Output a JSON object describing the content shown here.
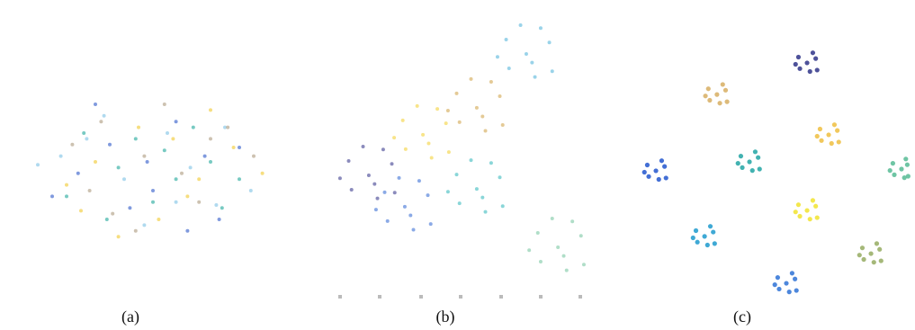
{
  "chart_data": [
    {
      "type": "scatter",
      "title": "(a)",
      "xlim": [
        0,
        100
      ],
      "ylim": [
        0,
        100
      ],
      "series": [
        {
          "color": "#f2d04a",
          "x": [
            30,
            62,
            45,
            78,
            52,
            20,
            70,
            38,
            88,
            57,
            25,
            66
          ],
          "values": [
            50,
            38,
            62,
            55,
            30,
            42,
            68,
            24,
            46,
            58,
            33,
            44
          ]
        },
        {
          "color": "#8fcbe8",
          "x": [
            40,
            55,
            72,
            18,
            63,
            33,
            84,
            47,
            27,
            75,
            58,
            10
          ],
          "values": [
            44,
            60,
            35,
            52,
            48,
            66,
            40,
            28,
            58,
            62,
            36,
            49
          ]
        },
        {
          "color": "#4a6fd0",
          "x": [
            35,
            50,
            68,
            24,
            58,
            80,
            42,
            15,
            73,
            30,
            62,
            48
          ],
          "values": [
            56,
            40,
            52,
            46,
            64,
            55,
            34,
            38,
            30,
            70,
            26,
            50
          ]
        },
        {
          "color": "#b8a890",
          "x": [
            28,
            47,
            60,
            76,
            36,
            54,
            22,
            66,
            85,
            44,
            70,
            32
          ],
          "values": [
            40,
            52,
            46,
            62,
            32,
            70,
            56,
            36,
            52,
            26,
            58,
            64
          ]
        },
        {
          "color": "#3fb3a8",
          "x": [
            38,
            58,
            50,
            26,
            70,
            44,
            80,
            34,
            64,
            20,
            54,
            74
          ],
          "values": [
            48,
            44,
            36,
            60,
            50,
            58,
            44,
            30,
            62,
            38,
            54,
            34
          ]
        }
      ]
    },
    {
      "type": "scatter",
      "title": "(b)",
      "xlim": [
        0,
        100
      ],
      "ylim": [
        0,
        100
      ],
      "series": [
        {
          "color": "#6fc0e0",
          "x": [
            70.3,
            78.3,
            63.3,
            73.3,
            64.3,
            75.3,
            60.3,
            79.3,
            68.3,
            72.3
          ],
          "values": [
            87.5,
            91.5,
            92.5,
            79.5,
            82.5,
            96.5,
            86.5,
            81.5,
            97.5,
            84.5
          ]
        },
        {
          "color": "#d9b36a",
          "x": [
            53.1,
            61.1,
            46.1,
            56.1,
            47.1,
            58.1,
            43.1,
            62.1,
            51.1,
            55.1
          ],
          "values": [
            68.8,
            72.8,
            73.8,
            60.8,
            63.8,
            77.8,
            67.8,
            62.8,
            78.8,
            65.8
          ]
        },
        {
          "color": "#f5d858",
          "x": [
            34.4,
            42.4,
            27.4,
            37.4,
            28.4,
            39.4,
            24.4,
            43.4,
            32.4,
            36.4
          ],
          "values": [
            59.4,
            63.4,
            64.4,
            51.4,
            54.4,
            68.4,
            58.4,
            53.4,
            69.4,
            56.4
          ]
        },
        {
          "color": "#5a5aa0",
          "x": [
            15.6,
            23.6,
            8.6,
            18.6,
            9.6,
            20.6,
            5.6,
            24.6,
            13.6,
            17.6
          ],
          "values": [
            45.3,
            49.3,
            50.3,
            37.3,
            40.3,
            54.3,
            44.3,
            39.3,
            55.3,
            42.3
          ]
        },
        {
          "color": "#5a86dc",
          "x": [
            28.1,
            36.1,
            21.1,
            31.1,
            22.1,
            33.1,
            18.1,
            37.1,
            26.1,
            30.1
          ],
          "values": [
            34.4,
            38.4,
            39.4,
            26.4,
            29.4,
            43.4,
            33.4,
            28.4,
            44.4,
            31.4
          ]
        },
        {
          "color": "#58c4c8",
          "x": [
            53.1,
            61.1,
            46.1,
            56.1,
            47.1,
            58.1,
            43.1,
            62.1,
            51.1,
            55.1
          ],
          "values": [
            40.6,
            44.6,
            45.6,
            32.6,
            35.6,
            49.6,
            39.6,
            34.6,
            50.6,
            37.6
          ]
        },
        {
          "color": "#8fd0b0",
          "x": [
            81.3,
            89.3,
            74.3,
            84.3,
            75.3,
            86.3,
            71.3,
            90.3,
            79.3,
            83.3
          ],
          "values": [
            20.3,
            24.3,
            25.3,
            12.3,
            15.3,
            29.3,
            19.3,
            14.3,
            30.3,
            17.3
          ]
        }
      ]
    },
    {
      "type": "scatter",
      "title": "(c)",
      "xlim": [
        0,
        100
      ],
      "ylim": [
        0,
        100
      ],
      "series": [
        {
          "color": "#3b3f8f",
          "x": [
            64.7,
            67.7,
            61.7,
            65.7,
            62.2,
            66.7,
            60.7,
            68.2
          ],
          "values": [
            84.4,
            85.9,
            86.4,
            81.4,
            82.4,
            87.9,
            83.9,
            81.9
          ]
        },
        {
          "color": "#d9b36a",
          "x": [
            33.4,
            36.4,
            30.4,
            34.4,
            30.9,
            35.4,
            29.4,
            36.9
          ],
          "values": [
            73.4,
            74.9,
            75.4,
            70.4,
            71.4,
            76.9,
            72.9,
            70.9
          ]
        },
        {
          "color": "#f0c24a",
          "x": [
            72.2,
            75.2,
            69.2,
            73.2,
            69.7,
            74.2,
            68.2,
            75.7
          ],
          "values": [
            59.4,
            60.9,
            61.4,
            56.4,
            57.4,
            62.9,
            58.9,
            56.9
          ]
        },
        {
          "color": "#2eaaa8",
          "x": [
            44.7,
            47.7,
            41.7,
            45.7,
            42.2,
            46.7,
            40.7,
            48.2
          ],
          "values": [
            50,
            51.5,
            52,
            47,
            48,
            53.5,
            49.5,
            47.5
          ]
        },
        {
          "color": "#2f5fd0",
          "x": [
            12.2,
            15.2,
            9.2,
            13.2,
            9.7,
            14.2,
            8.2,
            15.7
          ],
          "values": [
            46.9,
            48.4,
            48.9,
            43.9,
            44.9,
            50.4,
            46.4,
            44.4
          ]
        },
        {
          "color": "#5fbf9a",
          "x": [
            97.5,
            99.5,
            94.5,
            98.5,
            95,
            99,
            93.5,
            99.8
          ],
          "values": [
            47.5,
            49,
            49.5,
            44.5,
            45.5,
            51,
            47,
            45
          ]
        },
        {
          "color": "#f2e43a",
          "x": [
            64.7,
            67.7,
            61.7,
            65.7,
            62.2,
            66.7,
            60.7,
            68.2
          ],
          "values": [
            33.1,
            34.6,
            35.1,
            30.1,
            31.1,
            36.6,
            32.6,
            30.6
          ]
        },
        {
          "color": "#2aa0d0",
          "x": [
            29.1,
            32.1,
            26.1,
            30.1,
            26.6,
            31.1,
            25.1,
            32.6
          ],
          "values": [
            24.1,
            25.6,
            26.1,
            21.1,
            22.1,
            27.6,
            23.6,
            21.6
          ]
        },
        {
          "color": "#9bb06a",
          "x": [
            86.9,
            89.9,
            83.9,
            87.9,
            84.4,
            88.9,
            82.9,
            90.4
          ],
          "values": [
            18.1,
            19.6,
            20.1,
            15.1,
            16.1,
            21.6,
            17.6,
            15.6
          ]
        },
        {
          "color": "#3a7ad8",
          "x": [
            57.5,
            60.5,
            54.5,
            58.5,
            55,
            59.5,
            53.5,
            61
          ],
          "values": [
            7.8,
            9.3,
            9.8,
            4.8,
            5.8,
            11.3,
            7.3,
            5.3
          ]
        }
      ]
    }
  ]
}
